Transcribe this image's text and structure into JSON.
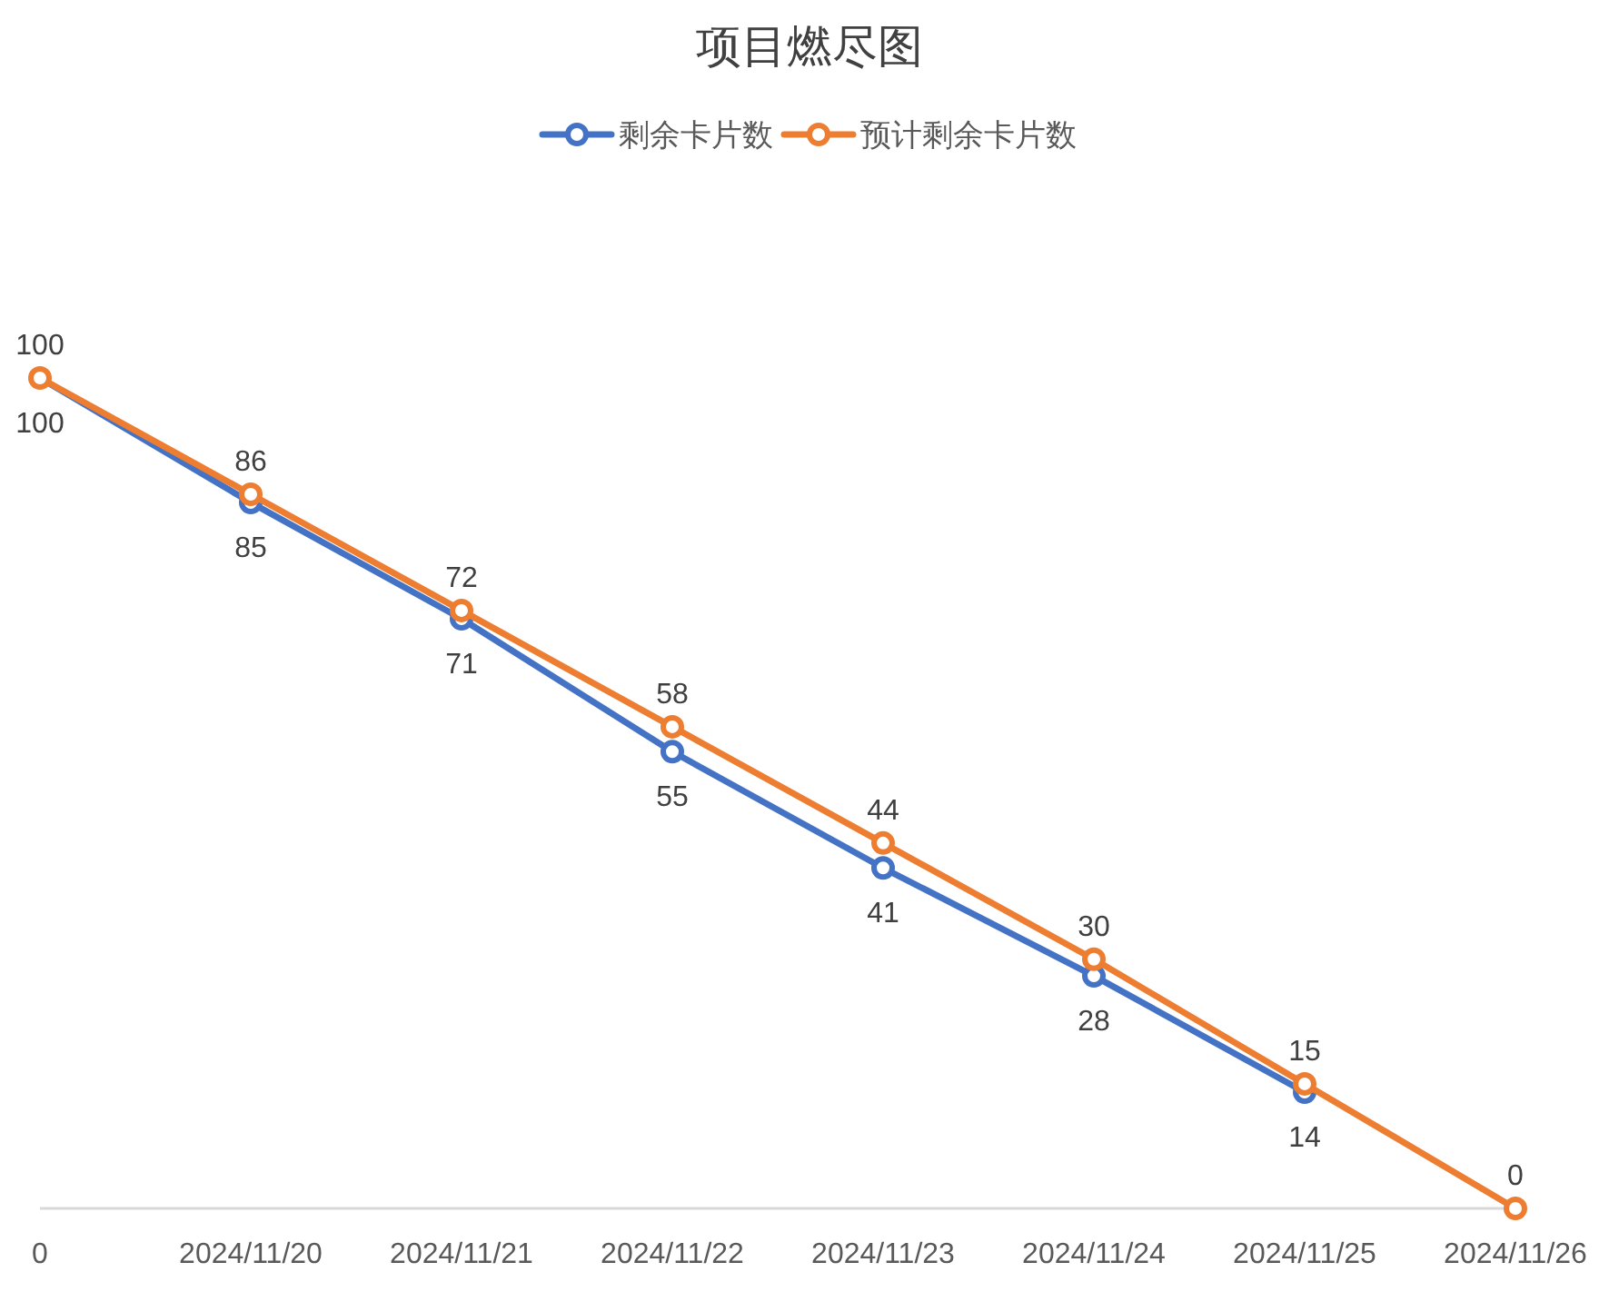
{
  "chart_data": {
    "type": "line",
    "title": "项目燃尽图",
    "categories": [
      "0",
      "2024/11/20",
      "2024/11/21",
      "2024/11/22",
      "2024/11/23",
      "2024/11/24",
      "2024/11/25",
      "2024/11/26"
    ],
    "series": [
      {
        "name": "剩余卡片数",
        "color": "#4472c4",
        "values": [
          100,
          85,
          71,
          55,
          41,
          28,
          14,
          null
        ]
      },
      {
        "name": "预计剩余卡片数",
        "color": "#ed7d31",
        "values": [
          100,
          86,
          72,
          58,
          44,
          30,
          15,
          0
        ]
      }
    ],
    "data_labels": true,
    "legend": "top",
    "marker": "circle",
    "line_style": "solid",
    "tick_labels": "x"
  }
}
